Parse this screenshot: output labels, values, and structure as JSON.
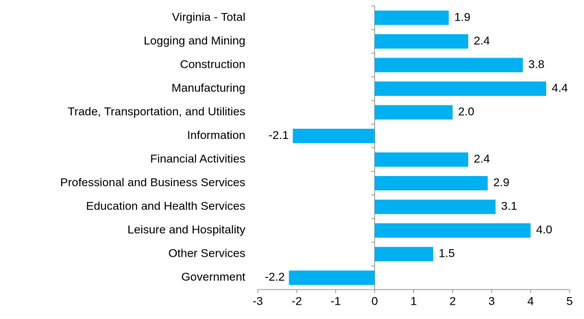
{
  "chart_data": {
    "type": "hbar",
    "categories": [
      "Virginia - Total",
      "Logging and Mining",
      "Construction",
      "Manufacturing",
      "Trade, Transportation, and Utilities",
      "Information",
      "Financial Activities",
      "Professional and Business Services",
      "Education and Health Services",
      "Leisure and Hospitality",
      "Other Services",
      "Government"
    ],
    "values": [
      1.9,
      2.4,
      3.8,
      4.4,
      2.0,
      -2.1,
      2.4,
      2.9,
      3.1,
      4.0,
      1.5,
      -2.2
    ],
    "value_labels": [
      "1.9",
      "2.4",
      "3.8",
      "4.4",
      "2.0",
      "-2.1",
      "2.4",
      "2.9",
      "3.1",
      "4.0",
      "1.5",
      "-2.2"
    ],
    "color": "#00b0f0",
    "xlim": [
      -3,
      5
    ],
    "xticks": [
      -3,
      -2,
      -1,
      0,
      1,
      2,
      3,
      4,
      5
    ],
    "grid": false
  }
}
